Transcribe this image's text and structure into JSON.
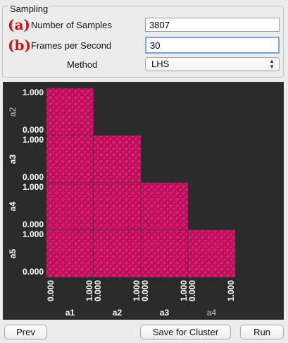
{
  "sampling": {
    "title": "Sampling",
    "samples": {
      "marker": "(a)",
      "label": "Number of Samples",
      "value": "3807"
    },
    "fps": {
      "marker": "(b)",
      "label": "Frames per Second",
      "value": "30"
    },
    "method": {
      "label": "Method",
      "value": "LHS"
    }
  },
  "chart_data": {
    "type": "scatter",
    "variables": [
      "a1",
      "a2",
      "a3",
      "a4",
      "a5"
    ],
    "x_variables": [
      "a1",
      "a2",
      "a3",
      "a4"
    ],
    "y_variables": [
      "a2",
      "a3",
      "a4",
      "a5"
    ],
    "range": [
      0.0,
      1.0
    ],
    "tick_labels": [
      "0.000",
      "1.000"
    ],
    "layout": "lower-triangular scatter matrix",
    "grid": false,
    "point_color": "#e0176e"
  },
  "footer": {
    "prev": "Prev",
    "save": "Save for Cluster",
    "run": "Run"
  }
}
